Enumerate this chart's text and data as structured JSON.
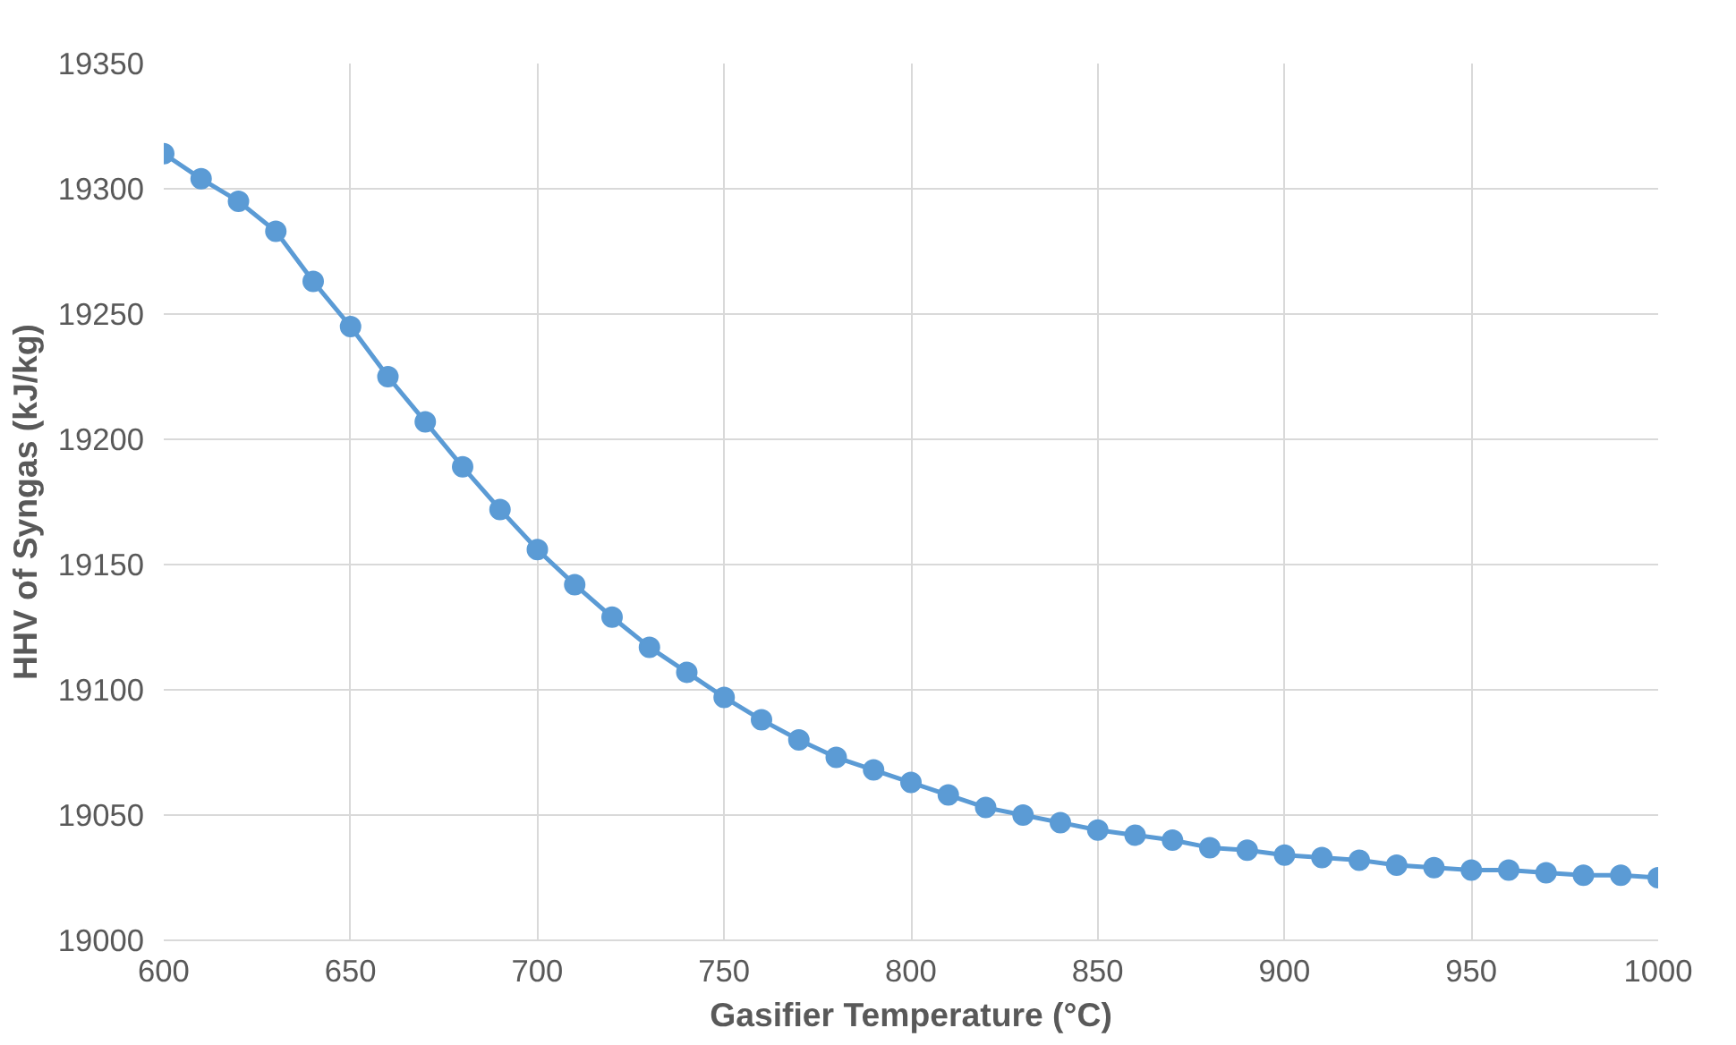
{
  "chart_data": {
    "type": "line",
    "xlabel": "Gasifier Temperature (°C)",
    "ylabel": "HHV of Syngas (kJ/kg)",
    "x": [
      600,
      610,
      620,
      630,
      640,
      650,
      660,
      670,
      680,
      690,
      700,
      710,
      720,
      730,
      740,
      750,
      760,
      770,
      780,
      790,
      800,
      810,
      820,
      830,
      840,
      850,
      860,
      870,
      880,
      890,
      900,
      910,
      920,
      930,
      940,
      950,
      960,
      970,
      980,
      990,
      1000
    ],
    "series": [
      {
        "color": "#5b9bd5",
        "values": [
          19314,
          19304,
          19295,
          19283,
          19263,
          19245,
          19225,
          19207,
          19189,
          19172,
          19156,
          19142,
          19129,
          19117,
          19107,
          19097,
          19088,
          19080,
          19073,
          19068,
          19063,
          19058,
          19053,
          19050,
          19047,
          19044,
          19042,
          19040,
          19037,
          19036,
          19034,
          19033,
          19032,
          19030,
          19029,
          19028,
          19028,
          19027,
          19026,
          19026,
          19025
        ]
      }
    ],
    "xlim": [
      600,
      1000
    ],
    "xticks": [
      600,
      650,
      700,
      750,
      800,
      850,
      900,
      950,
      1000
    ],
    "ylim": [
      19000,
      19350
    ],
    "yticks": [
      19000,
      19050,
      19100,
      19150,
      19200,
      19250,
      19300,
      19350
    ],
    "grid": true,
    "marker": "circle",
    "line_style": "solid"
  }
}
